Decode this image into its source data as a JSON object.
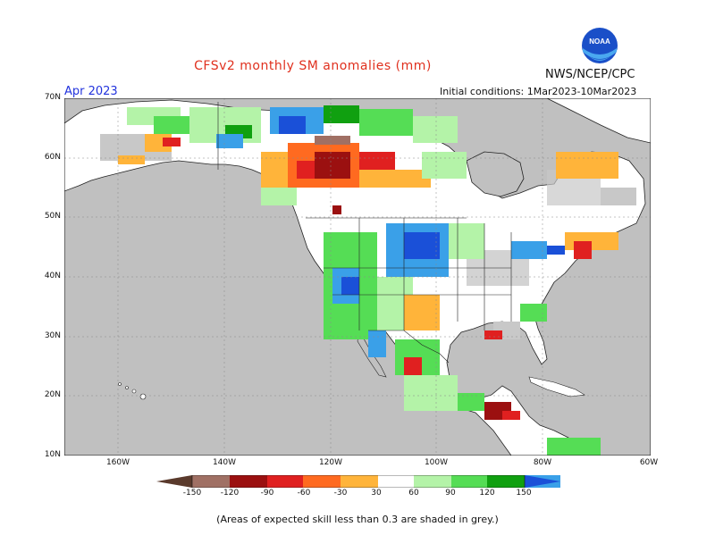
{
  "title": "CFSv2 monthly SM anomalies (mm)",
  "agency": "NWS/NCEP/CPC",
  "logo_text": "NOAA",
  "forecast_month": "Apr 2023",
  "initial_conditions": "Initial conditions: 1Mar2023-10Mar2023",
  "footnote": "(Areas of expected skill less than 0.3 are shaded in grey.)",
  "lat_labels": [
    "70N",
    "60N",
    "50N",
    "40N",
    "30N",
    "20N",
    "10N"
  ],
  "lon_labels": [
    "160W",
    "140W",
    "120W",
    "100W",
    "80W",
    "60W"
  ],
  "colorbar": {
    "ticks": [
      "-150",
      "-120",
      "-90",
      "-60",
      "-30",
      "30",
      "60",
      "90",
      "120",
      "150"
    ],
    "colors": [
      "#5a3a2c",
      "#a07064",
      "#9b1010",
      "#e02020",
      "#ff6a20",
      "#ffb43a",
      "#ffffff",
      "#b4f3a8",
      "#55dd55",
      "#10a010",
      "#3aa0e8",
      "#1a50d8"
    ]
  },
  "colors": {
    "ocean": "#c0c0c0",
    "land": "#ffffff",
    "title": "#e0301e",
    "month": "#2233dd"
  }
}
